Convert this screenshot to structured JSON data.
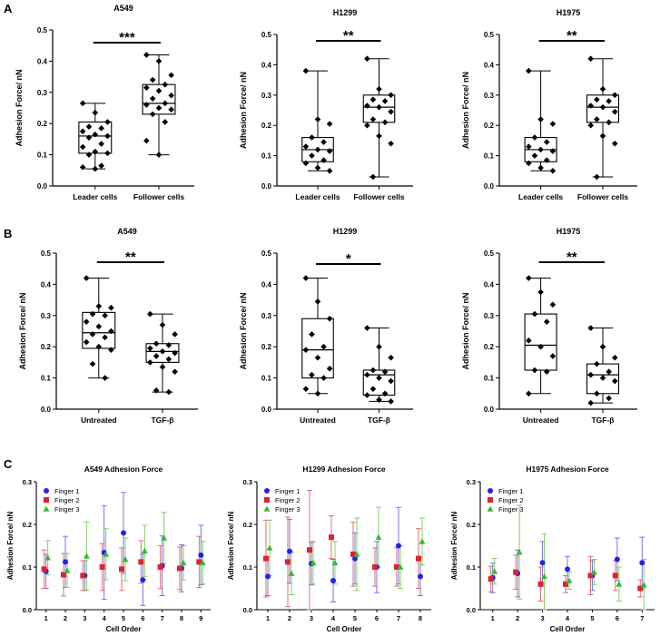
{
  "panel_labels": {
    "a": "A",
    "b": "B",
    "c": "C"
  },
  "colors": {
    "finger1": "#2222ee",
    "finger2": "#dd2233",
    "finger3": "#33bb33",
    "err1": "#6666ee",
    "err2": "#e06060",
    "err3": "#77cc55",
    "ink": "#000000"
  },
  "chart_data": [
    {
      "id": "A1",
      "type": "box",
      "title": "A549",
      "ylabel": "Adhesion Force/ nN",
      "ylim": [
        0,
        0.5
      ],
      "yticks": [
        "0.0",
        "0.1",
        "0.2",
        "0.3",
        "0.4",
        "0.5"
      ],
      "categories": [
        "Leader cells",
        "Follower cells"
      ],
      "significance": "***",
      "boxes": [
        {
          "min": 0.055,
          "q1": 0.105,
          "median": 0.16,
          "q3": 0.205,
          "max": 0.265,
          "points": [
            0.265,
            0.235,
            0.205,
            0.19,
            0.185,
            0.175,
            0.165,
            0.16,
            0.155,
            0.135,
            0.125,
            0.11,
            0.105,
            0.1,
            0.065,
            0.06,
            0.055
          ]
        },
        {
          "min": 0.1,
          "q1": 0.23,
          "median": 0.265,
          "q3": 0.325,
          "max": 0.42,
          "points": [
            0.42,
            0.4,
            0.355,
            0.34,
            0.325,
            0.315,
            0.305,
            0.29,
            0.28,
            0.265,
            0.26,
            0.25,
            0.245,
            0.23,
            0.205,
            0.145,
            0.1
          ]
        }
      ]
    },
    {
      "id": "A2",
      "type": "box",
      "title": "H1299",
      "ylabel": "Adhesion Force/ nN",
      "ylim": [
        0,
        0.5
      ],
      "yticks": [
        "0.0",
        "0.1",
        "0.2",
        "0.3",
        "0.4",
        "0.5"
      ],
      "categories": [
        "Leader cells",
        "Follower cells"
      ],
      "significance": "**",
      "boxes": [
        {
          "min": 0.05,
          "q1": 0.08,
          "median": 0.12,
          "q3": 0.16,
          "max": 0.38,
          "points": [
            0.38,
            0.22,
            0.205,
            0.16,
            0.145,
            0.13,
            0.12,
            0.115,
            0.1,
            0.085,
            0.075,
            0.06,
            0.05
          ]
        },
        {
          "min": 0.03,
          "q1": 0.21,
          "median": 0.26,
          "q3": 0.3,
          "max": 0.42,
          "points": [
            0.42,
            0.32,
            0.3,
            0.285,
            0.28,
            0.265,
            0.26,
            0.245,
            0.22,
            0.21,
            0.2,
            0.165,
            0.14,
            0.03
          ]
        }
      ]
    },
    {
      "id": "A3",
      "type": "box",
      "title": "H1975",
      "ylabel": "Adhesion Force/ nN",
      "ylim": [
        0,
        0.5
      ],
      "yticks": [
        "0.0",
        "0.1",
        "0.2",
        "0.3",
        "0.4",
        "0.5"
      ],
      "categories": [
        "Leader cells",
        "Follower cells"
      ],
      "significance": "**",
      "boxes": [
        {
          "min": 0.05,
          "q1": 0.08,
          "median": 0.12,
          "q3": 0.16,
          "max": 0.38,
          "points": [
            0.38,
            0.22,
            0.205,
            0.16,
            0.145,
            0.13,
            0.12,
            0.115,
            0.1,
            0.085,
            0.075,
            0.06,
            0.05
          ]
        },
        {
          "min": 0.03,
          "q1": 0.21,
          "median": 0.26,
          "q3": 0.3,
          "max": 0.42,
          "points": [
            0.42,
            0.32,
            0.3,
            0.285,
            0.28,
            0.265,
            0.26,
            0.245,
            0.22,
            0.21,
            0.2,
            0.165,
            0.14,
            0.03
          ]
        }
      ]
    },
    {
      "id": "B1",
      "type": "box",
      "title": "A549",
      "ylabel": "Adhesion Force/ nN",
      "ylim": [
        0,
        0.5
      ],
      "yticks": [
        "0.0",
        "0.1",
        "0.2",
        "0.3",
        "0.4",
        "0.5"
      ],
      "categories": [
        "Untreated",
        "TGF-β"
      ],
      "significance": "**",
      "boxes": [
        {
          "min": 0.1,
          "q1": 0.195,
          "median": 0.245,
          "q3": 0.31,
          "max": 0.42,
          "points": [
            0.42,
            0.33,
            0.325,
            0.305,
            0.3,
            0.28,
            0.265,
            0.25,
            0.24,
            0.23,
            0.215,
            0.2,
            0.19,
            0.145,
            0.1
          ]
        },
        {
          "min": 0.055,
          "q1": 0.15,
          "median": 0.185,
          "q3": 0.21,
          "max": 0.305,
          "points": [
            0.305,
            0.27,
            0.24,
            0.21,
            0.205,
            0.195,
            0.185,
            0.18,
            0.17,
            0.16,
            0.15,
            0.135,
            0.12,
            0.06,
            0.055
          ]
        }
      ]
    },
    {
      "id": "B2",
      "type": "box",
      "title": "H1299",
      "ylabel": "Adhesion Force/ nN",
      "ylim": [
        0,
        0.5
      ],
      "yticks": [
        "0.0",
        "0.1",
        "0.2",
        "0.3",
        "0.4",
        "0.5"
      ],
      "categories": [
        "Untreated",
        "TGF-β"
      ],
      "significance": "*",
      "boxes": [
        {
          "min": 0.05,
          "q1": 0.1,
          "median": 0.19,
          "q3": 0.29,
          "max": 0.42,
          "points": [
            0.42,
            0.345,
            0.29,
            0.24,
            0.2,
            0.19,
            0.165,
            0.13,
            0.11,
            0.1,
            0.065,
            0.05
          ]
        },
        {
          "min": 0.025,
          "q1": 0.045,
          "median": 0.11,
          "q3": 0.125,
          "max": 0.26,
          "points": [
            0.26,
            0.2,
            0.165,
            0.125,
            0.12,
            0.11,
            0.1,
            0.09,
            0.065,
            0.05,
            0.045,
            0.03,
            0.025
          ]
        }
      ]
    },
    {
      "id": "B3",
      "type": "box",
      "title": "H1975",
      "ylabel": "Adhesion Force/ nN",
      "ylim": [
        0,
        0.5
      ],
      "yticks": [
        "0.0",
        "0.1",
        "0.2",
        "0.3",
        "0.4",
        "0.5"
      ],
      "categories": [
        "Untreated",
        "TGF-β"
      ],
      "significance": "**",
      "boxes": [
        {
          "min": 0.05,
          "q1": 0.125,
          "median": 0.205,
          "q3": 0.305,
          "max": 0.42,
          "points": [
            0.42,
            0.375,
            0.335,
            0.305,
            0.28,
            0.22,
            0.2,
            0.17,
            0.125,
            0.12,
            0.05
          ]
        },
        {
          "min": 0.02,
          "q1": 0.05,
          "median": 0.11,
          "q3": 0.145,
          "max": 0.26,
          "points": [
            0.26,
            0.2,
            0.165,
            0.145,
            0.12,
            0.11,
            0.1,
            0.09,
            0.05,
            0.035,
            0.02
          ]
        }
      ]
    },
    {
      "id": "C1",
      "type": "scatter-errorbar",
      "title": "A549 Adhesion Force",
      "xlabel": "Cell Order",
      "ylabel": "Adhesion Force/ nN",
      "ylim": [
        0,
        0.3
      ],
      "yticks": [
        "0.0",
        "0.1",
        "0.2",
        "0.3"
      ],
      "x": [
        1,
        2,
        3,
        4,
        5,
        6,
        7,
        8,
        9
      ],
      "legend": [
        "Finger 1",
        "Finger 2",
        "Finger 3"
      ],
      "series": [
        {
          "name": "Finger 1",
          "values": [
            0.09,
            0.112,
            0.08,
            0.134,
            0.18,
            0.07,
            0.103,
            0.097,
            0.128
          ],
          "err": [
            0.04,
            0.06,
            0.035,
            0.11,
            0.095,
            0.06,
            0.07,
            0.055,
            0.07
          ]
        },
        {
          "name": "Finger 2",
          "values": [
            0.095,
            0.082,
            0.08,
            0.1,
            0.095,
            0.112,
            0.1,
            0.097,
            0.112
          ],
          "err": [
            0.045,
            0.05,
            0.035,
            0.055,
            0.05,
            0.05,
            0.05,
            0.05,
            0.06
          ]
        },
        {
          "name": "Finger 3",
          "values": [
            0.122,
            0.092,
            0.126,
            0.13,
            0.118,
            0.138,
            0.168,
            0.11,
            0.11
          ],
          "err": [
            0.04,
            0.04,
            0.08,
            0.06,
            0.05,
            0.06,
            0.06,
            0.04,
            0.05
          ]
        }
      ]
    },
    {
      "id": "C2",
      "type": "scatter-errorbar",
      "title": "H1299 Adhesion Force",
      "xlabel": "Cell Order",
      "ylabel": "Adhesion Force/ nN",
      "ylim": [
        0,
        0.3
      ],
      "yticks": [
        "0.0",
        "0.1",
        "0.2",
        "0.3"
      ],
      "x": [
        1,
        2,
        3,
        4,
        5,
        6,
        7,
        8
      ],
      "legend": [
        "Finger 1",
        "Finger 2",
        "Finger 3"
      ],
      "series": [
        {
          "name": "Finger 1",
          "values": [
            0.078,
            0.137,
            0.108,
            0.068,
            0.12,
            0.1,
            0.15,
            0.078
          ],
          "err": [
            0.045,
            0.075,
            0.05,
            0.05,
            0.06,
            0.06,
            0.09,
            0.045
          ]
        },
        {
          "name": "Finger 2",
          "values": [
            0.12,
            0.112,
            0.14,
            0.17,
            0.13,
            0.1,
            0.1,
            0.12
          ],
          "err": [
            0.09,
            0.105,
            0.14,
            0.05,
            0.075,
            0.045,
            0.045,
            0.07
          ]
        },
        {
          "name": "Finger 3",
          "values": [
            0.145,
            0.085,
            0.11,
            0.11,
            0.13,
            0.17,
            0.1,
            0.16
          ],
          "err": [
            0.065,
            0.05,
            0.05,
            0.05,
            0.085,
            0.07,
            0.05,
            0.055
          ]
        }
      ]
    },
    {
      "id": "C3",
      "type": "scatter-errorbar",
      "title": "H1975 Adhesion Force",
      "xlabel": "Cell Order",
      "ylabel": "Adhesion Force/ nN",
      "ylim": [
        0,
        0.3
      ],
      "yticks": [
        "0.0",
        "0.1",
        "0.2",
        "0.3"
      ],
      "x": [
        1,
        2,
        3,
        4,
        5,
        6,
        7
      ],
      "legend": [
        "Finger 1",
        "Finger 2",
        "Finger 3"
      ],
      "series": [
        {
          "name": "Finger 1",
          "values": [
            0.075,
            0.085,
            0.11,
            0.095,
            0.08,
            0.118,
            0.11
          ],
          "err": [
            0.035,
            0.055,
            0.05,
            0.03,
            0.035,
            0.05,
            0.06
          ]
        },
        {
          "name": "Finger 2",
          "values": [
            0.072,
            0.088,
            0.06,
            0.06,
            0.08,
            0.08,
            0.05
          ],
          "err": [
            0.03,
            0.04,
            0.04,
            0.02,
            0.045,
            0.035,
            0.02
          ]
        },
        {
          "name": "Finger 3",
          "values": [
            0.09,
            0.135,
            0.078,
            0.068,
            0.088,
            0.06,
            0.058
          ],
          "err": [
            0.03,
            0.11,
            0.1,
            0.02,
            0.03,
            0.04,
            0.06
          ]
        }
      ]
    }
  ]
}
